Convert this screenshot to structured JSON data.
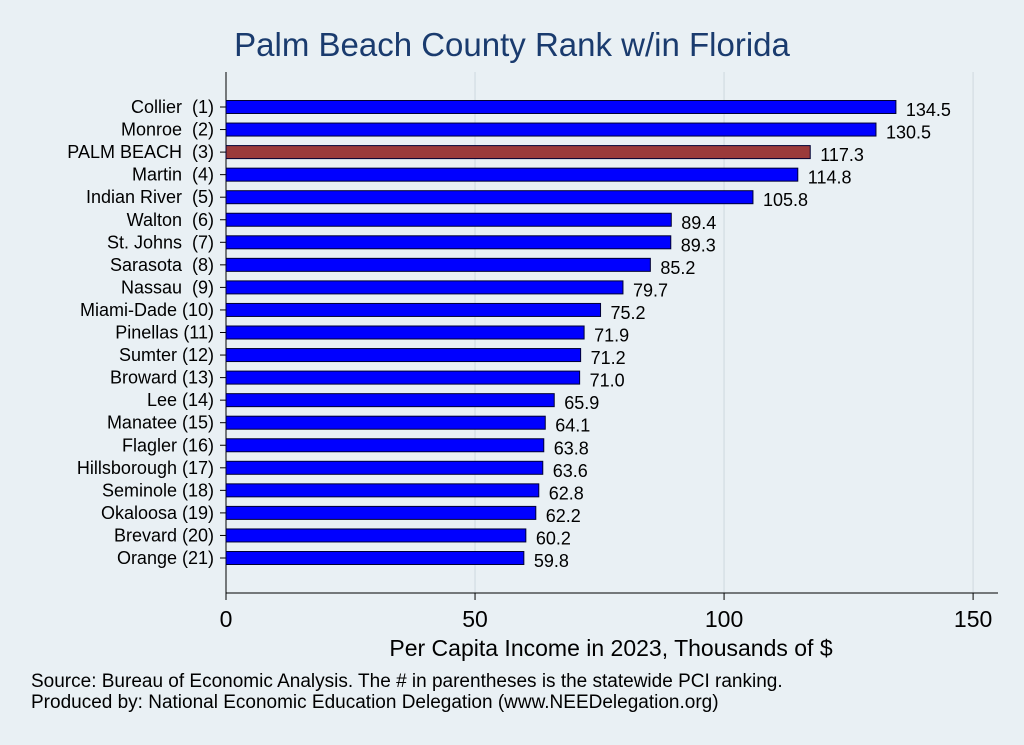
{
  "chart_data": {
    "type": "bar",
    "orientation": "horizontal",
    "title": "Palm Beach County Rank w/in Florida",
    "xlabel": "Per Capita Income in 2023, Thousands of $",
    "ylabel": "",
    "xlim": [
      0,
      155
    ],
    "xticks": [
      0,
      50,
      100,
      150
    ],
    "grid": true,
    "categories": [
      "Collier  (1)",
      "Monroe  (2)",
      "PALM BEACH  (3)",
      "Martin  (4)",
      "Indian River  (5)",
      "Walton  (6)",
      "St. Johns  (7)",
      "Sarasota  (8)",
      "Nassau  (9)",
      "Miami-Dade (10)",
      "Pinellas (11)",
      "Sumter (12)",
      "Broward (13)",
      "Lee (14)",
      "Manatee (15)",
      "Flagler (16)",
      "Hillsborough (17)",
      "Seminole (18)",
      "Okaloosa (19)",
      "Brevard (20)",
      "Orange (21)"
    ],
    "values": [
      134.5,
      130.5,
      117.3,
      114.8,
      105.8,
      89.4,
      89.3,
      85.2,
      79.7,
      75.2,
      71.9,
      71.2,
      71.0,
      65.9,
      64.1,
      63.8,
      63.6,
      62.8,
      62.2,
      60.2,
      59.8
    ],
    "value_labels": [
      "134.5",
      "130.5",
      "117.3",
      "114.8",
      "105.8",
      "89.4",
      "89.3",
      "85.2",
      "79.7",
      "75.2",
      "71.9",
      "71.2",
      "71.0",
      "65.9",
      "64.1",
      "63.8",
      "63.6",
      "62.8",
      "62.2",
      "60.2",
      "59.8"
    ],
    "highlight_index": 2,
    "colors": {
      "bar": "#0000ff",
      "highlight": "#9b3a3a",
      "bar_outline": "#000033",
      "grid": "#d7e0e6",
      "background": "#e9f0f4",
      "title": "#1a3b6e"
    }
  },
  "notes": {
    "source": "Source: Bureau of Economic Analysis. The # in parentheses is the statewide PCI ranking.",
    "produced_by": "Produced by: National Economic Education Delegation (www.NEEDelegation.org)"
  }
}
